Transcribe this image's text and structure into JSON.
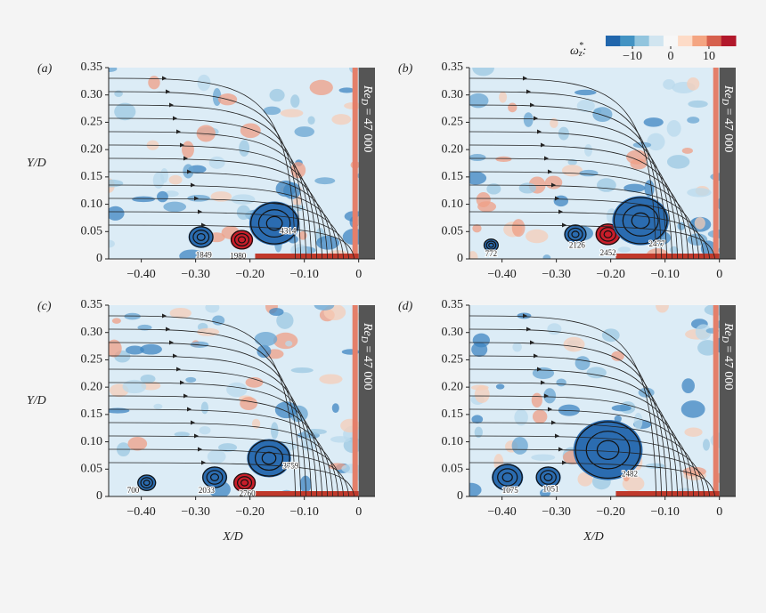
{
  "chart_data": [
    {
      "type": "colorbar",
      "label": {
        "symbol": "ω",
        "sup": "*",
        "sub": "z",
        "suffix": ":"
      },
      "clim": [
        -17,
        17
      ],
      "colors": [
        "#2166ac",
        "#4393c3",
        "#92c5de",
        "#d1e5f0",
        "#f7f7f7",
        "#fddbc7",
        "#f4a582",
        "#d6604d",
        "#b2182b"
      ],
      "ticks": [
        {
          "value": -10,
          "label": "−10"
        },
        0,
        10
      ]
    },
    {
      "type": "vorticity-field",
      "panel_label": "(a)",
      "ylabel": "Y/D",
      "xlabel": null,
      "wall_label": {
        "base": "Re",
        "sub": "D",
        "rest": " = 47 000"
      },
      "xlim": [
        -0.46,
        0.03
      ],
      "ylim": [
        0,
        0.35
      ],
      "xticks": [
        {
          "value": -0.4,
          "label": "−0.40"
        },
        {
          "value": -0.3,
          "label": "−0.30"
        },
        {
          "value": -0.2,
          "label": "−0.20"
        },
        {
          "value": -0.1,
          "label": "−0.10"
        },
        0
      ],
      "yticks": [
        0,
        0.05,
        {
          "value": 0.1,
          "label": "0.10"
        },
        0.15,
        {
          "value": 0.2,
          "label": "0.20"
        },
        0.25,
        {
          "value": 0.3,
          "label": "0.30"
        },
        0.35
      ],
      "vortices": [
        {
          "x": -0.29,
          "y": 0.04,
          "r": 0.02,
          "sign": -1
        },
        {
          "x": -0.215,
          "y": 0.035,
          "r": 0.018,
          "sign": 1
        },
        {
          "x": -0.155,
          "y": 0.065,
          "r": 0.04,
          "sign": -1
        }
      ],
      "annotations": [
        {
          "text": "1849",
          "x": -0.285,
          "y": 0.006
        },
        {
          "text": "1980",
          "x": -0.222,
          "y": 0.004
        },
        {
          "text": "4314",
          "x": -0.13,
          "y": 0.05
        }
      ]
    },
    {
      "type": "vorticity-field",
      "panel_label": "(b)",
      "ylabel": null,
      "xlabel": null,
      "wall_label": {
        "base": "Re",
        "sub": "D",
        "rest": " = 47 000"
      },
      "xlim": [
        -0.46,
        0.03
      ],
      "ylim": [
        0,
        0.35
      ],
      "xticks": [
        {
          "value": -0.4,
          "label": "−0.40"
        },
        {
          "value": -0.3,
          "label": "−0.30"
        },
        {
          "value": -0.2,
          "label": "−0.20"
        },
        {
          "value": -0.1,
          "label": "−0.10"
        },
        0
      ],
      "yticks": [
        0,
        0.05,
        {
          "value": 0.1,
          "label": "0.10"
        },
        0.15,
        {
          "value": 0.2,
          "label": "0.20"
        },
        0.25,
        {
          "value": 0.3,
          "label": "0.30"
        },
        0.35
      ],
      "vortices": [
        {
          "x": -0.42,
          "y": 0.025,
          "r": 0.012,
          "sign": -1
        },
        {
          "x": -0.265,
          "y": 0.045,
          "r": 0.018,
          "sign": -1
        },
        {
          "x": -0.205,
          "y": 0.045,
          "r": 0.02,
          "sign": 1
        },
        {
          "x": -0.145,
          "y": 0.07,
          "r": 0.045,
          "sign": -1
        }
      ],
      "annotations": [
        {
          "text": "772",
          "x": -0.42,
          "y": 0.008
        },
        {
          "text": "2126",
          "x": -0.262,
          "y": 0.024
        },
        {
          "text": "2452",
          "x": -0.205,
          "y": 0.01
        },
        {
          "text": "2477",
          "x": -0.115,
          "y": 0.026
        }
      ]
    },
    {
      "type": "vorticity-field",
      "panel_label": "(c)",
      "ylabel": "Y/D",
      "xlabel": "X/D",
      "wall_label": {
        "base": "Re",
        "sub": "D",
        "rest": " = 47 000"
      },
      "xlim": [
        -0.46,
        0.03
      ],
      "ylim": [
        0,
        0.35
      ],
      "xticks": [
        {
          "value": -0.4,
          "label": "−0.40"
        },
        {
          "value": -0.3,
          "label": "−0.30"
        },
        {
          "value": -0.2,
          "label": "−0.20"
        },
        {
          "value": -0.1,
          "label": "−0.10"
        },
        0
      ],
      "yticks": [
        0,
        0.05,
        {
          "value": 0.1,
          "label": "0.10"
        },
        0.15,
        {
          "value": 0.2,
          "label": "0.20"
        },
        0.25,
        {
          "value": 0.3,
          "label": "0.30"
        },
        0.35
      ],
      "vortices": [
        {
          "x": -0.39,
          "y": 0.025,
          "r": 0.015,
          "sign": -1
        },
        {
          "x": -0.265,
          "y": 0.035,
          "r": 0.02,
          "sign": -1
        },
        {
          "x": -0.21,
          "y": 0.025,
          "r": 0.018,
          "sign": 1
        },
        {
          "x": -0.165,
          "y": 0.07,
          "r": 0.035,
          "sign": -1
        }
      ],
      "annotations": [
        {
          "text": "700",
          "x": -0.415,
          "y": 0.01
        },
        {
          "text": "2033",
          "x": -0.28,
          "y": 0.01
        },
        {
          "text": "2760",
          "x": -0.205,
          "y": 0.004
        },
        {
          "text": "3759",
          "x": -0.125,
          "y": 0.055
        }
      ]
    },
    {
      "type": "vorticity-field",
      "panel_label": "(d)",
      "ylabel": null,
      "xlabel": "X/D",
      "wall_label": {
        "base": "Re",
        "sub": "D",
        "rest": " = 47 000"
      },
      "xlim": [
        -0.46,
        0.03
      ],
      "ylim": [
        0,
        0.35
      ],
      "xticks": [
        {
          "value": -0.4,
          "label": "−0.40"
        },
        {
          "value": -0.3,
          "label": "−0.30"
        },
        {
          "value": -0.2,
          "label": "−0.20"
        },
        {
          "value": -0.1,
          "label": "−0.10"
        },
        0
      ],
      "yticks": [
        0,
        0.05,
        {
          "value": 0.1,
          "label": "0.10"
        },
        0.15,
        {
          "value": 0.2,
          "label": "0.20"
        },
        0.25,
        {
          "value": 0.3,
          "label": "0.30"
        },
        0.35
      ],
      "vortices": [
        {
          "x": -0.39,
          "y": 0.035,
          "r": 0.025,
          "sign": -1
        },
        {
          "x": -0.315,
          "y": 0.035,
          "r": 0.02,
          "sign": -1
        },
        {
          "x": -0.205,
          "y": 0.085,
          "r": 0.055,
          "sign": -1
        }
      ],
      "annotations": [
        {
          "text": "1075",
          "x": -0.385,
          "y": 0.01
        },
        {
          "text": "1051",
          "x": -0.31,
          "y": 0.012
        },
        {
          "text": "2482",
          "x": -0.165,
          "y": 0.04
        }
      ]
    }
  ]
}
